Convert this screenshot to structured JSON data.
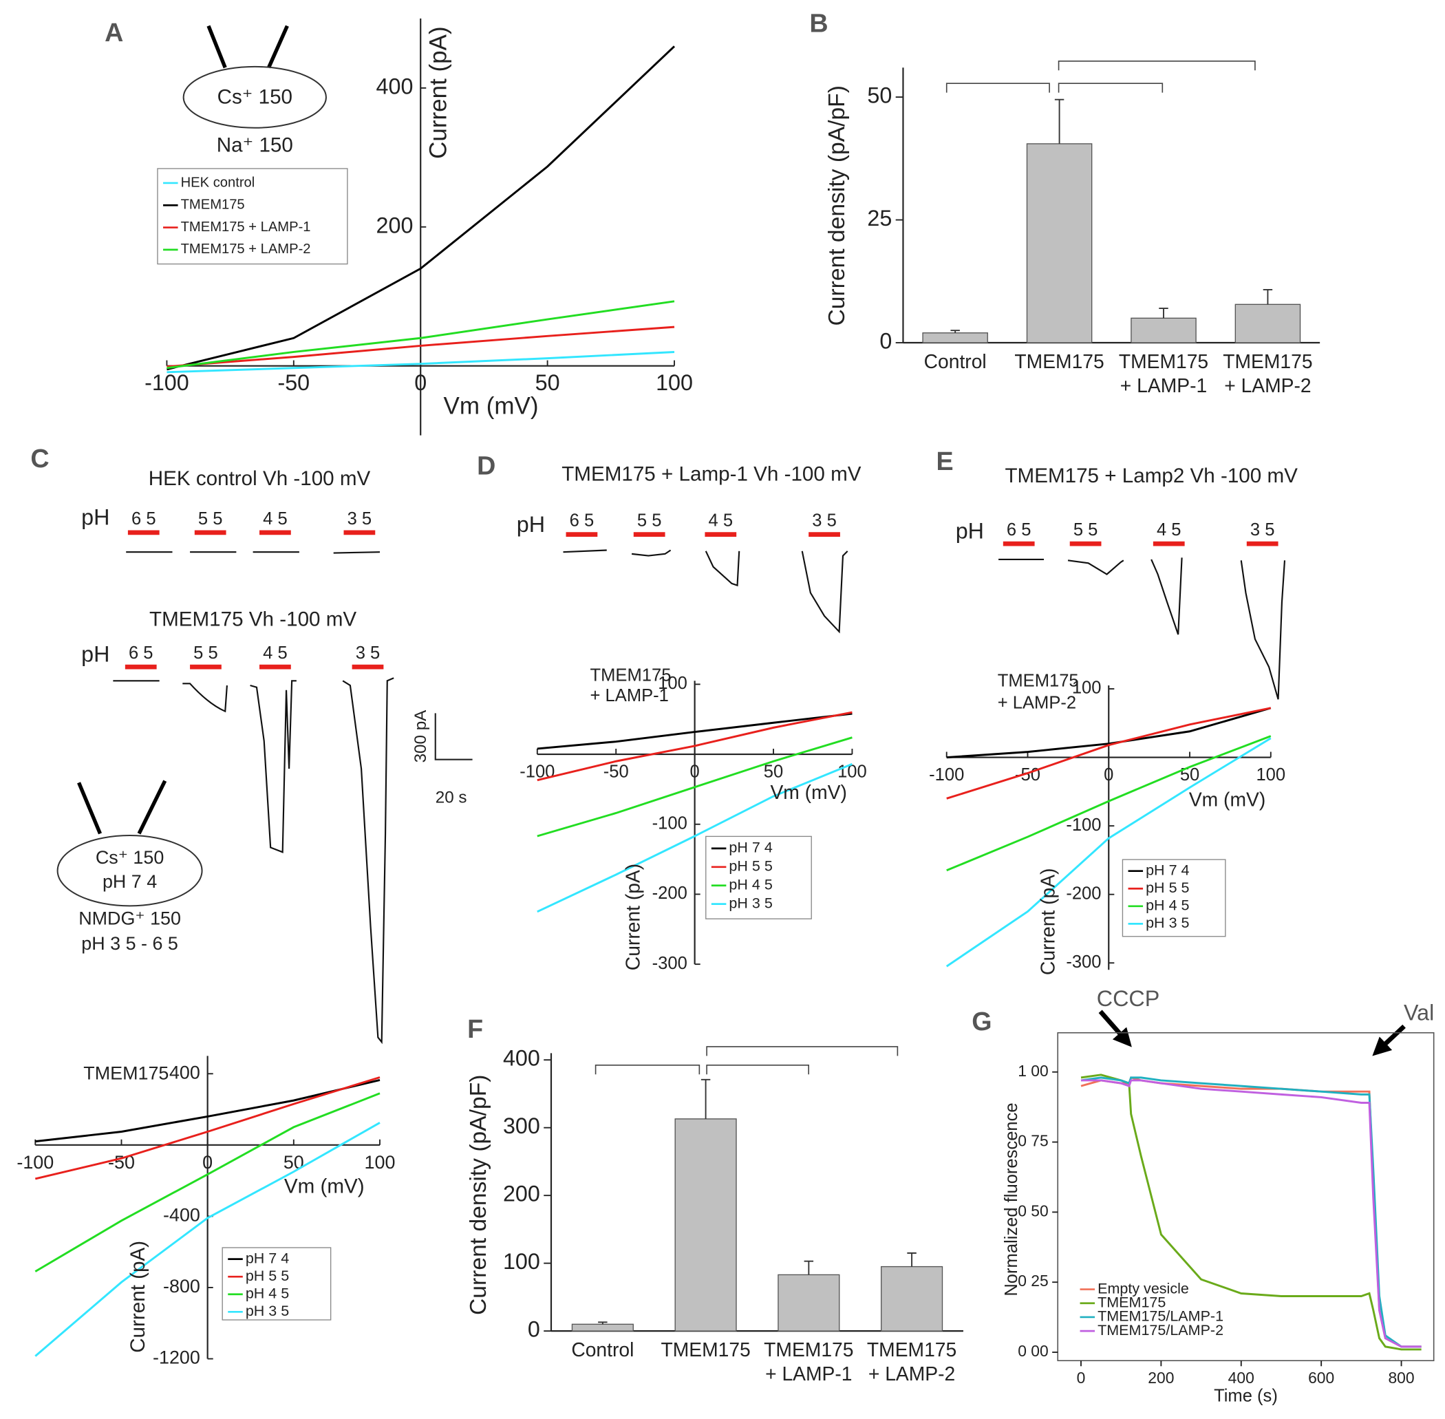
{
  "panel_labels": [
    "A",
    "B",
    "C",
    "D",
    "E",
    "F",
    "G"
  ],
  "insets": {
    "A": [
      "Cs⁺ 150",
      "Na⁺ 150"
    ],
    "C": [
      "Cs⁺ 150",
      "pH  7 4",
      "NMDG⁺ 150",
      "pH  3 5 - 6 5"
    ]
  },
  "recordings": [
    {
      "title": "HEK control  Vh  -100 mV",
      "ph_label": "pH",
      "steps": [
        "6 5",
        "5 5",
        "4 5",
        "3 5"
      ]
    },
    {
      "title": "TMEM175  Vh  -100 mV",
      "ph_label": "pH",
      "steps": [
        "6 5",
        "5 5",
        "4 5",
        "3 5"
      ]
    },
    {
      "title": "TMEM175 + Lamp-1  Vh  -100 mV",
      "ph_label": "pH",
      "steps": [
        "6 5",
        "5 5",
        "4 5",
        "3 5"
      ]
    },
    {
      "title": "TMEM175 + Lamp2  Vh  -100 mV",
      "ph_label": "pH",
      "steps": [
        "6 5",
        "5 5",
        "4 5",
        "3 5"
      ]
    }
  ],
  "scale_bar": [
    "300 pA",
    "20 s"
  ],
  "chart_data": [
    {
      "type": "line",
      "x_label": "Vm (mV)",
      "y_label": "Current (pA)",
      "x": [
        -100,
        -50,
        0,
        50,
        100
      ],
      "xlim": [
        -100,
        100
      ],
      "ylim": [
        -100,
        500
      ],
      "xticks": [
        -100,
        -50,
        0,
        50,
        100
      ],
      "yticks": [
        200,
        400
      ],
      "series": [
        {
          "name": "HEK control",
          "color": "#33e6ff",
          "values": [
            -9,
            -3,
            3,
            11,
            20
          ]
        },
        {
          "name": "TMEM175",
          "color": "#000000",
          "values": [
            -5,
            40,
            140,
            287,
            460
          ]
        },
        {
          "name": "TMEM175 + LAMP-1",
          "color": "#e8201c",
          "values": [
            -1,
            13,
            29,
            43,
            56
          ]
        },
        {
          "name": "TMEM175 + LAMP-2",
          "color": "#22dd22",
          "values": [
            -3,
            20,
            40,
            67,
            93
          ]
        }
      ]
    },
    {
      "type": "bar",
      "y_label": "Current density (pA/pF)",
      "categories": [
        [
          "Control"
        ],
        [
          "TMEM175"
        ],
        [
          "TMEM175",
          "+ LAMP-1"
        ],
        [
          "TMEM175",
          "+ LAMP-2"
        ]
      ],
      "values": [
        2,
        40.5,
        5,
        7.8
      ],
      "errors": [
        0.5,
        9,
        2,
        3
      ],
      "color": "#c0c0c0",
      "ylim": [
        0,
        56
      ],
      "yticks": [
        0,
        25,
        50
      ]
    },
    {
      "type": "line",
      "x_label": "Vm (mV)",
      "y_label": "Current (pA)",
      "annotations": [
        "TMEM175"
      ],
      "x": [
        -100,
        -50,
        0,
        50,
        100
      ],
      "xlim": [
        -100,
        100
      ],
      "ylim": [
        -1200,
        500
      ],
      "xticks": [
        -100,
        -50,
        0,
        50,
        100
      ],
      "yticks": [
        400,
        -400,
        -800,
        -1200
      ],
      "series": [
        {
          "name": "pH  7 4",
          "color": "#000000",
          "values": [
            20,
            75,
            160,
            250,
            365
          ]
        },
        {
          "name": "pH  5 5",
          "color": "#e8201c",
          "values": [
            -190,
            -75,
            75,
            230,
            380
          ]
        },
        {
          "name": "pH  4 5",
          "color": "#22dd22",
          "values": [
            -710,
            -425,
            -165,
            100,
            290
          ]
        },
        {
          "name": "pH  3 5",
          "color": "#33e6ff",
          "values": [
            -1185,
            -770,
            -410,
            -150,
            125
          ]
        }
      ]
    },
    {
      "type": "line",
      "x_label": "Vm (mV)",
      "y_label": "Current (pA)",
      "annotations": [
        "TMEM175",
        "+ LAMP-1"
      ],
      "x": [
        -100,
        -50,
        0,
        50,
        100
      ],
      "xlim": [
        -100,
        100
      ],
      "ylim": [
        -300,
        105
      ],
      "xticks": [
        -100,
        -50,
        0,
        50,
        100
      ],
      "yticks": [
        100,
        -100,
        -200,
        -300
      ],
      "series": [
        {
          "name": "pH  7 4",
          "color": "#000000",
          "values": [
            8,
            18,
            32,
            45,
            58
          ]
        },
        {
          "name": "pH  5 5",
          "color": "#e8201c",
          "values": [
            -37,
            -10,
            12,
            38,
            60
          ]
        },
        {
          "name": "pH  4 5",
          "color": "#22dd22",
          "values": [
            -117,
            -84,
            -47,
            -10,
            24
          ]
        },
        {
          "name": "pH  3 5",
          "color": "#33e6ff",
          "values": [
            -225,
            -172,
            -117,
            -60,
            -14
          ]
        }
      ]
    },
    {
      "type": "line",
      "x_label": "Vm (mV)",
      "y_label": "Current (pA)",
      "annotations": [
        "TMEM175",
        "+ LAMP-2"
      ],
      "x": [
        -100,
        -50,
        0,
        50,
        100
      ],
      "xlim": [
        -100,
        100
      ],
      "ylim": [
        -310,
        105
      ],
      "xticks": [
        -100,
        -50,
        0,
        50,
        100
      ],
      "yticks": [
        100,
        -100,
        -200,
        -300
      ],
      "series": [
        {
          "name": "pH  7 4",
          "color": "#000000",
          "values": [
            0,
            8,
            20,
            38,
            72
          ]
        },
        {
          "name": "pH  5 5",
          "color": "#e8201c",
          "values": [
            -60,
            -23,
            18,
            48,
            72
          ]
        },
        {
          "name": "pH  4 5",
          "color": "#22dd22",
          "values": [
            -165,
            -116,
            -64,
            -14,
            31
          ]
        },
        {
          "name": "pH  3 5",
          "color": "#33e6ff",
          "values": [
            -305,
            -225,
            -118,
            -44,
            28
          ]
        }
      ]
    },
    {
      "type": "bar",
      "y_label": "Current density (pA/pF)",
      "categories": [
        [
          "Control"
        ],
        [
          "TMEM175"
        ],
        [
          "TMEM175",
          "+ LAMP-1"
        ],
        [
          "TMEM175",
          "+ LAMP-2"
        ]
      ],
      "values": [
        10,
        313,
        83,
        95
      ],
      "errors": [
        3,
        58,
        20,
        20
      ],
      "color": "#c0c0c0",
      "ylim": [
        0,
        410
      ],
      "yticks": [
        0,
        100,
        200,
        300,
        400
      ]
    },
    {
      "type": "line",
      "x_label": "Time (s)",
      "y_label": "Normalized fluorescence",
      "annotations": [
        "CCCP",
        "Val"
      ],
      "x": [
        0,
        50,
        100,
        120,
        125,
        150,
        200,
        300,
        400,
        500,
        600,
        700,
        720,
        730,
        745,
        760,
        800,
        850
      ],
      "xlim": [
        -58,
        881
      ],
      "ylim": [
        -0.03,
        1.14
      ],
      "xticks": [
        0,
        200,
        400,
        600,
        800
      ],
      "yticks": [
        {
          "value": 0,
          "label": "0 00"
        },
        {
          "value": 0.25,
          "label": "0 25"
        },
        {
          "value": 0.5,
          "label": "0 50"
        },
        {
          "value": 0.75,
          "label": "0 75"
        },
        {
          "value": 1,
          "label": "1 00"
        }
      ],
      "series": [
        {
          "name": "Empty vesicle",
          "color": "#f07058",
          "values": [
            0.95,
            0.97,
            0.96,
            0.96,
            0.98,
            0.97,
            0.96,
            0.95,
            0.94,
            0.94,
            0.93,
            0.93,
            0.93,
            0.6,
            0.15,
            0.05,
            0.02,
            0.02
          ]
        },
        {
          "name": "TMEM175",
          "color": "#6aaa1a",
          "values": [
            0.98,
            0.99,
            0.97,
            0.96,
            0.85,
            0.7,
            0.42,
            0.26,
            0.21,
            0.2,
            0.2,
            0.2,
            0.21,
            0.15,
            0.05,
            0.02,
            0.01,
            0.01
          ]
        },
        {
          "name": "TMEM175/LAMP-1",
          "color": "#20b0c0",
          "values": [
            0.97,
            0.98,
            0.97,
            0.96,
            0.98,
            0.98,
            0.97,
            0.96,
            0.95,
            0.94,
            0.93,
            0.92,
            0.92,
            0.65,
            0.2,
            0.06,
            0.02,
            0.02
          ]
        },
        {
          "name": "TMEM175/LAMP-2",
          "color": "#c060e0",
          "values": [
            0.97,
            0.97,
            0.96,
            0.95,
            0.97,
            0.97,
            0.96,
            0.94,
            0.93,
            0.92,
            0.91,
            0.89,
            0.89,
            0.55,
            0.15,
            0.05,
            0.02,
            0.02
          ]
        }
      ]
    }
  ]
}
